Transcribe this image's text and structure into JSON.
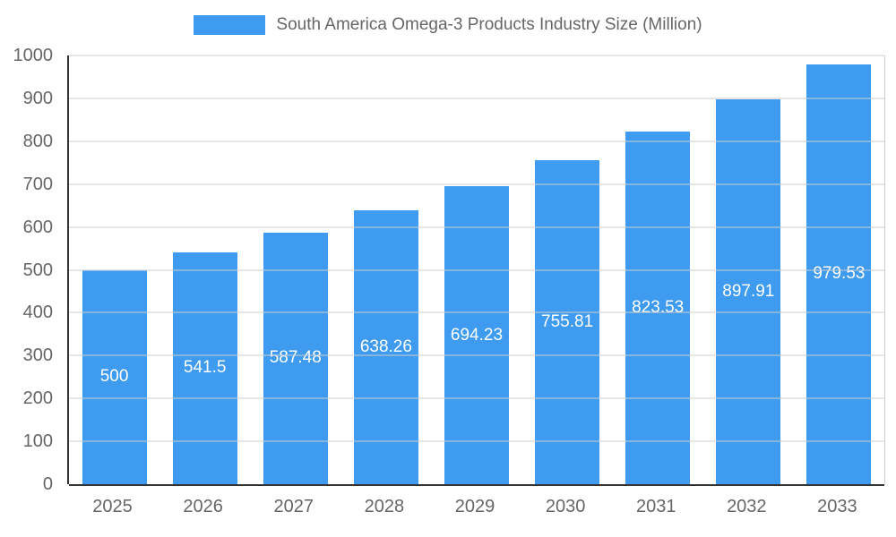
{
  "chart_data": {
    "type": "bar",
    "title": "South America Omega-3 Products Industry Size (Million)",
    "categories": [
      "2025",
      "2026",
      "2027",
      "2028",
      "2029",
      "2030",
      "2031",
      "2032",
      "2033"
    ],
    "values": [
      500,
      541.5,
      587.48,
      638.26,
      694.23,
      755.81,
      823.53,
      897.91,
      979.53
    ],
    "bar_labels": [
      "500",
      "541.5",
      "587.48",
      "638.26",
      "694.23",
      "755.81",
      "823.53",
      "897.91",
      "979.53"
    ],
    "xlabel": "",
    "ylabel": "",
    "ylim": [
      0,
      1000
    ],
    "yticks": [
      0,
      100,
      200,
      300,
      400,
      500,
      600,
      700,
      800,
      900,
      1000
    ],
    "grid": true,
    "legend_position": "top",
    "colors": {
      "bar": "#3E9BF0",
      "bar_label": "#ffffff",
      "grid": "#cccccc",
      "axis": "#333333",
      "text": "#666666",
      "background": "#ffffff"
    }
  }
}
